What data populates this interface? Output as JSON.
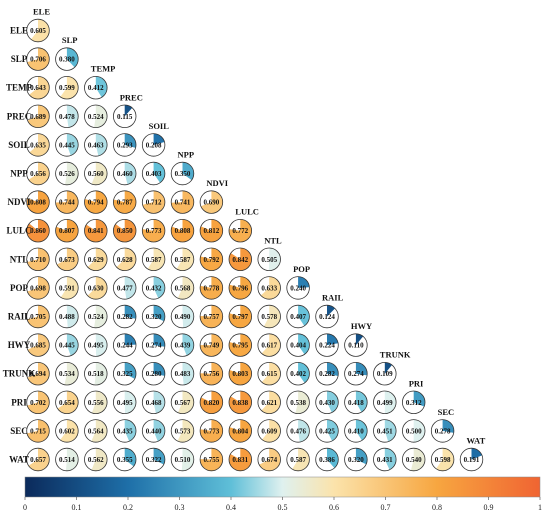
{
  "chart_data": {
    "type": "heatmap",
    "variables": [
      "ELE",
      "SLP",
      "TEMP",
      "PREC",
      "SOIL",
      "NPP",
      "NDVI",
      "LULC",
      "NTL",
      "POP",
      "RAIL",
      "HWY",
      "TRUNK",
      "PRI",
      "SEC",
      "WAT"
    ],
    "rows": [
      [
        "0.605"
      ],
      [
        "0.706",
        "0.380"
      ],
      [
        "0.643",
        "0.599",
        "0.412"
      ],
      [
        "0.689",
        "0.478",
        "0.524",
        "0.115"
      ],
      [
        "0.635",
        "0.445",
        "0.463",
        "0.293",
        "0.208"
      ],
      [
        "0.656",
        "0.526",
        "0.560",
        "0.460",
        "0.403",
        "0.350"
      ],
      [
        "0.808",
        "0.744",
        "0.794",
        "0.787",
        "0.712",
        "0.741",
        "0.690"
      ],
      [
        "0.860",
        "0.807",
        "0.841",
        "0.850",
        "0.773",
        "0.808",
        "0.812",
        "0.772"
      ],
      [
        "0.710",
        "0.673",
        "0.629",
        "0.628",
        "0.587",
        "0.587",
        "0.792",
        "0.842",
        "0.505"
      ],
      [
        "0.698",
        "0.591",
        "0.630",
        "0.477",
        "0.432",
        "0.568",
        "0.778",
        "0.796",
        "0.633",
        "0.240"
      ],
      [
        "0.705",
        "0.488",
        "0.524",
        "0.282",
        "0.320",
        "0.490",
        "0.757",
        "0.797",
        "0.578",
        "0.407",
        "0.124"
      ],
      [
        "0.685",
        "0.445",
        "0.495",
        "0.244",
        "0.274",
        "0.439",
        "0.749",
        "0.795",
        "0.617",
        "0.404",
        "0.224",
        "0.110"
      ],
      [
        "0.694",
        "0.534",
        "0.518",
        "0.325",
        "0.280",
        "0.483",
        "0.756",
        "0.803",
        "0.615",
        "0.402",
        "0.282",
        "0.274",
        "0.109"
      ],
      [
        "0.702",
        "0.654",
        "0.556",
        "0.495",
        "0.468",
        "0.567",
        "0.820",
        "0.838",
        "0.621",
        "0.538",
        "0.430",
        "0.418",
        "0.499",
        "0.312"
      ],
      [
        "0.715",
        "0.602",
        "0.564",
        "0.435",
        "0.440",
        "0.573",
        "0.773",
        "0.804",
        "0.609",
        "0.476",
        "0.425",
        "0.410",
        "0.451",
        "0.500",
        "0.278"
      ],
      [
        "0.657",
        "0.514",
        "0.562",
        "0.355",
        "0.322",
        "0.510",
        "0.755",
        "0.831",
        "0.674",
        "0.587",
        "0.386",
        "0.320",
        "0.431",
        "0.540",
        "0.598",
        "0.191"
      ]
    ],
    "colorbar": {
      "ticks": [
        "0",
        "0.1",
        "0.2",
        "0.3",
        "0.4",
        "0.5",
        "0.6",
        "0.7",
        "0.8",
        "0.9",
        "1"
      ],
      "range": [
        0,
        1
      ],
      "stops": [
        {
          "v": 0.0,
          "c": "#0b2a5b"
        },
        {
          "v": 0.2,
          "c": "#1e6fa8"
        },
        {
          "v": 0.4,
          "c": "#5fbfd8"
        },
        {
          "v": 0.5,
          "c": "#dff1ef"
        },
        {
          "v": 0.6,
          "c": "#fbe3ab"
        },
        {
          "v": 0.8,
          "c": "#f7a640"
        },
        {
          "v": 1.0,
          "c": "#f06432"
        }
      ]
    }
  }
}
